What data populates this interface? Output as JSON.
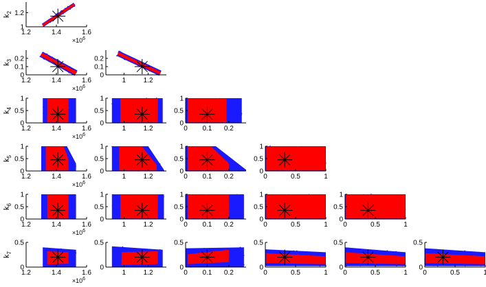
{
  "chart_data": {
    "type": "scatter",
    "layout": "lower-triangular scatter matrix",
    "colors": {
      "outer": "#1a1aff",
      "inner": "#ff0000",
      "marker": "#000000",
      "axis": "#000000"
    },
    "rows": [
      {
        "label": "k",
        "sub": "2",
        "ylim": [
          1,
          1.35
        ],
        "yticks": [
          {
            "v": 1,
            "t": "1"
          },
          {
            "v": 1.2,
            "t": "1.2"
          }
        ]
      },
      {
        "label": "k",
        "sub": "3",
        "ylim": [
          0,
          0.3
        ],
        "yticks": [
          {
            "v": 0,
            "t": "0"
          },
          {
            "v": 0.1,
            "t": "0.1"
          },
          {
            "v": 0.2,
            "t": "0.2"
          }
        ]
      },
      {
        "label": "k",
        "sub": "4",
        "ylim": [
          0,
          1
        ],
        "yticks": [
          {
            "v": 0,
            "t": "0"
          },
          {
            "v": 0.5,
            "t": "0.5"
          },
          {
            "v": 1,
            "t": "1"
          }
        ]
      },
      {
        "label": "k",
        "sub": "5",
        "ylim": [
          0,
          1
        ],
        "yticks": [
          {
            "v": 0,
            "t": "0"
          },
          {
            "v": 0.5,
            "t": "0.5"
          },
          {
            "v": 1,
            "t": "1"
          }
        ]
      },
      {
        "label": "k",
        "sub": "6",
        "ylim": [
          0,
          1
        ],
        "yticks": [
          {
            "v": 0,
            "t": "0"
          },
          {
            "v": 0.5,
            "t": "0.5"
          },
          {
            "v": 1,
            "t": "1"
          }
        ]
      },
      {
        "label": "k",
        "sub": "7",
        "ylim": [
          0,
          0.5
        ],
        "yticks": [
          {
            "v": 0,
            "t": "0"
          },
          {
            "v": 0.5,
            "t": "0.5"
          }
        ]
      }
    ],
    "columns": [
      {
        "xlim": [
          1.2,
          1.6
        ],
        "xticks": [
          {
            "v": 1.2,
            "t": "1.2"
          },
          {
            "v": 1.4,
            "t": "1.4"
          },
          {
            "v": 1.6,
            "t": "1.6"
          }
        ],
        "exponent_base": "×10",
        "exponent_power": "6"
      },
      {
        "xlim": [
          0.85,
          1.35
        ],
        "xticks": [
          {
            "v": 1,
            "t": "1"
          },
          {
            "v": 1.2,
            "t": "1.2"
          }
        ]
      },
      {
        "xlim": [
          0,
          0.28
        ],
        "xticks": [
          {
            "v": 0,
            "t": "0"
          },
          {
            "v": 0.1,
            "t": "0.1"
          },
          {
            "v": 0.2,
            "t": "0.2"
          }
        ]
      },
      {
        "xlim": [
          0,
          1
        ],
        "xticks": [
          {
            "v": 0,
            "t": "0"
          },
          {
            "v": 0.5,
            "t": "0.5"
          },
          {
            "v": 1,
            "t": "1"
          }
        ]
      },
      {
        "xlim": [
          0,
          1
        ],
        "xticks": [
          {
            "v": 0,
            "t": "0"
          },
          {
            "v": 0.5,
            "t": "0.5"
          },
          {
            "v": 1,
            "t": "1"
          }
        ]
      },
      {
        "xlim": [
          0,
          1
        ],
        "xticks": [
          {
            "v": 0,
            "t": "0"
          },
          {
            "v": 0.5,
            "t": "0.5"
          },
          {
            "v": 1,
            "t": "1"
          }
        ]
      }
    ],
    "estimate_marker": {
      "shape": "asterisk",
      "x_by_column": [
        1.41,
        1.15,
        0.1,
        0.32,
        0.38,
        0.3
      ],
      "y_by_row": [
        1.15,
        0.1,
        0.35,
        0.45,
        0.35,
        0.2
      ]
    },
    "regions": [
      {
        "row": 0,
        "col": 0,
        "kind": "band",
        "x0": 1.31,
        "y0": 1.02,
        "x1": 1.52,
        "y1": 1.32,
        "w_outer": 0.07,
        "w_inner": 0.045
      },
      {
        "row": 1,
        "col": 0,
        "kind": "band",
        "x0": 1.3,
        "y0": 0.25,
        "x1": 1.53,
        "y1": 0.02,
        "w_outer": 0.12,
        "w_inner": 0.07
      },
      {
        "row": 1,
        "col": 1,
        "kind": "band",
        "x0": 0.95,
        "y0": 0.26,
        "x1": 1.3,
        "y1": 0.02,
        "w_outer": 0.11,
        "w_inner": 0.06
      },
      {
        "row": 2,
        "col": 0,
        "kind": "rect",
        "outer": [
          1.31,
          0,
          1.53,
          1
        ],
        "inner": [
          1.34,
          0.02,
          1.48,
          0.98
        ]
      },
      {
        "row": 2,
        "col": 1,
        "kind": "rect",
        "outer": [
          0.9,
          0,
          1.32,
          1
        ],
        "inner": [
          0.97,
          0.02,
          1.28,
          0.98
        ]
      },
      {
        "row": 2,
        "col": 2,
        "kind": "rect",
        "outer": [
          0,
          0,
          0.26,
          1
        ],
        "inner": [
          0.01,
          0.02,
          0.19,
          0.98
        ]
      },
      {
        "row": 3,
        "col": 0,
        "kind": "trapezoid",
        "outer": [
          [
            1.3,
            0
          ],
          [
            1.3,
            1
          ],
          [
            1.47,
            1
          ],
          [
            1.53,
            0.3
          ],
          [
            1.53,
            0
          ]
        ],
        "inner": [
          [
            1.33,
            0.02
          ],
          [
            1.33,
            0.98
          ],
          [
            1.45,
            0.98
          ],
          [
            1.48,
            0.45
          ],
          [
            1.48,
            0.02
          ]
        ]
      },
      {
        "row": 3,
        "col": 1,
        "kind": "trapezoid",
        "outer": [
          [
            0.9,
            0
          ],
          [
            0.9,
            1
          ],
          [
            1.2,
            1
          ],
          [
            1.33,
            0.05
          ],
          [
            1.33,
            0
          ]
        ],
        "inner": [
          [
            0.96,
            0.02
          ],
          [
            0.96,
            0.98
          ],
          [
            1.15,
            0.98
          ],
          [
            1.27,
            0.25
          ],
          [
            1.27,
            0.02
          ]
        ]
      },
      {
        "row": 3,
        "col": 2,
        "kind": "trapezoid",
        "outer": [
          [
            0,
            0
          ],
          [
            0,
            1
          ],
          [
            0.14,
            1
          ],
          [
            0.28,
            0.05
          ],
          [
            0.28,
            0
          ]
        ],
        "inner": [
          [
            0.01,
            0.02
          ],
          [
            0.01,
            0.98
          ],
          [
            0.12,
            0.98
          ],
          [
            0.2,
            0.3
          ],
          [
            0.2,
            0.02
          ]
        ]
      },
      {
        "row": 3,
        "col": 3,
        "kind": "rect",
        "outer": [
          0,
          0,
          1,
          1
        ],
        "inner": [
          0.01,
          0.02,
          0.99,
          0.98
        ]
      },
      {
        "row": 4,
        "col": 0,
        "kind": "rect",
        "outer": [
          1.3,
          0,
          1.53,
          1
        ],
        "inner": [
          1.34,
          0.02,
          1.48,
          0.98
        ]
      },
      {
        "row": 4,
        "col": 1,
        "kind": "rect",
        "outer": [
          0.9,
          0,
          1.33,
          1
        ],
        "inner": [
          0.97,
          0.02,
          1.28,
          0.98
        ]
      },
      {
        "row": 4,
        "col": 2,
        "kind": "rect",
        "outer": [
          0,
          0,
          0.27,
          1
        ],
        "inner": [
          0.01,
          0.02,
          0.2,
          0.98
        ]
      },
      {
        "row": 4,
        "col": 3,
        "kind": "rect",
        "outer": [
          0,
          0,
          1,
          1
        ],
        "inner": [
          0.01,
          0.02,
          0.99,
          0.98
        ]
      },
      {
        "row": 4,
        "col": 4,
        "kind": "rect",
        "outer": [
          0,
          0,
          1,
          1
        ],
        "inner": [
          0.01,
          0.02,
          0.99,
          0.98
        ]
      },
      {
        "row": 5,
        "col": 0,
        "kind": "trapezoid",
        "outer": [
          [
            1.31,
            0
          ],
          [
            1.31,
            0.4
          ],
          [
            1.53,
            0.35
          ],
          [
            1.53,
            0
          ]
        ],
        "inner": [
          [
            1.34,
            0.05
          ],
          [
            1.34,
            0.32
          ],
          [
            1.48,
            0.3
          ],
          [
            1.48,
            0.07
          ]
        ]
      },
      {
        "row": 5,
        "col": 1,
        "kind": "trapezoid",
        "outer": [
          [
            0.9,
            0
          ],
          [
            0.9,
            0.42
          ],
          [
            1.32,
            0.35
          ],
          [
            1.32,
            0
          ]
        ],
        "inner": [
          [
            0.98,
            0.04
          ],
          [
            0.98,
            0.3
          ],
          [
            1.28,
            0.32
          ],
          [
            1.28,
            0.06
          ]
        ]
      },
      {
        "row": 5,
        "col": 2,
        "kind": "trapezoid",
        "outer": [
          [
            0,
            0
          ],
          [
            0,
            0.38
          ],
          [
            0.27,
            0.4
          ],
          [
            0.27,
            0
          ]
        ],
        "inner": [
          [
            0.01,
            0.06
          ],
          [
            0.01,
            0.26
          ],
          [
            0.2,
            0.35
          ],
          [
            0.2,
            0.1
          ]
        ]
      },
      {
        "row": 5,
        "col": 3,
        "kind": "trapezoid",
        "outer": [
          [
            0,
            0.02
          ],
          [
            0,
            0.36
          ],
          [
            1,
            0.3
          ],
          [
            1,
            0.02
          ]
        ],
        "inner": [
          [
            0.01,
            0.08
          ],
          [
            0.01,
            0.28
          ],
          [
            0.99,
            0.22
          ],
          [
            0.99,
            0.06
          ]
        ]
      },
      {
        "row": 5,
        "col": 4,
        "kind": "trapezoid",
        "outer": [
          [
            0,
            0.02
          ],
          [
            0,
            0.4
          ],
          [
            1,
            0.3
          ],
          [
            1,
            0.02
          ]
        ],
        "inner": [
          [
            0.01,
            0.08
          ],
          [
            0.01,
            0.3
          ],
          [
            0.99,
            0.22
          ],
          [
            0.99,
            0.06
          ]
        ]
      },
      {
        "row": 5,
        "col": 5,
        "kind": "trapezoid",
        "outer": [
          [
            0,
            0.02
          ],
          [
            0,
            0.38
          ],
          [
            1,
            0.3
          ],
          [
            1,
            0.02
          ]
        ],
        "inner": [
          [
            0.01,
            0.08
          ],
          [
            0.01,
            0.28
          ],
          [
            0.99,
            0.22
          ],
          [
            0.99,
            0.06
          ]
        ]
      }
    ]
  }
}
